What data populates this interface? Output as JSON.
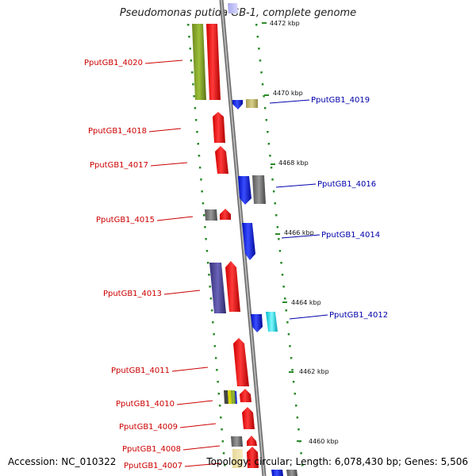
{
  "title": "Pseudomonas putida GB-1, complete genome",
  "footer": {
    "accession": "Accession: NC_010322",
    "summary": "Topology: circular; Length: 6,078,430 bp; Genes: 5,506"
  },
  "colors": {
    "left_label": "#cc0000",
    "right_label": "#0000aa",
    "backbone": "#8a8a8a",
    "dots": "#2a8a2a"
  },
  "ticks": [
    {
      "label": "4472 kbp"
    },
    {
      "label": "4470 kbp"
    },
    {
      "label": "4468 kbp"
    },
    {
      "label": "4466 kbp"
    },
    {
      "label": "4464 kbp"
    },
    {
      "label": "4462 kbp"
    },
    {
      "label": "4460 kbp"
    }
  ],
  "left_genes": [
    {
      "label": "PputGB1_4020"
    },
    {
      "label": "PputGB1_4018"
    },
    {
      "label": "PputGB1_4017"
    },
    {
      "label": "PputGB1_4015"
    },
    {
      "label": "PputGB1_4013"
    },
    {
      "label": "PputGB1_4011"
    },
    {
      "label": "PputGB1_4010"
    },
    {
      "label": "PputGB1_4009"
    },
    {
      "label": "PputGB1_4008"
    },
    {
      "label": "PputGB1_4007"
    }
  ],
  "right_genes": [
    {
      "label": "PputGB1_4019"
    },
    {
      "label": "PputGB1_4016"
    },
    {
      "label": "PputGB1_4014"
    },
    {
      "label": "PputGB1_4012"
    }
  ]
}
